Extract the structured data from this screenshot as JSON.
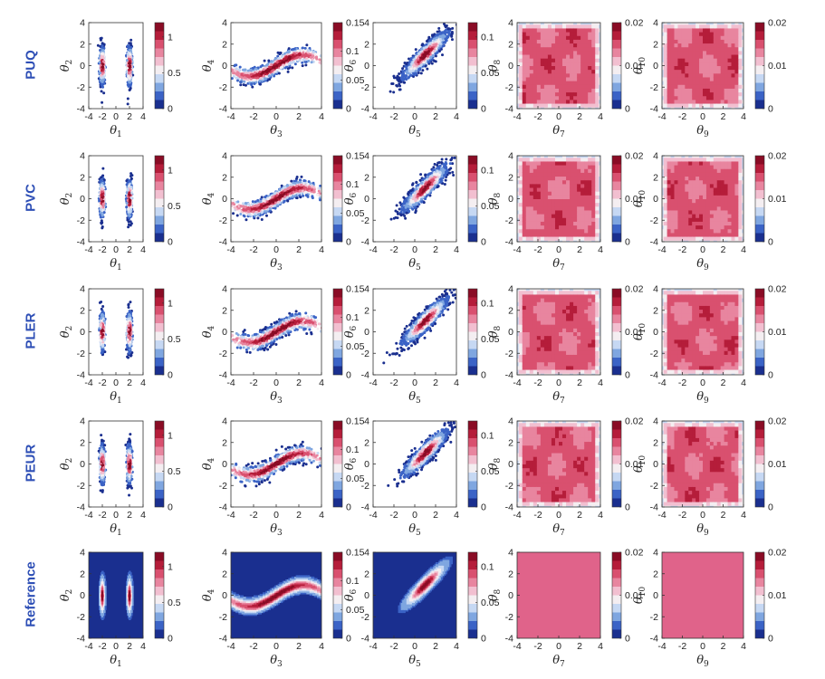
{
  "methods": [
    "PUQ",
    "PVC",
    "PLER",
    "PEUR",
    "Reference"
  ],
  "colors": {
    "row_label": "#2e4fb6",
    "colormap": [
      "#1a2f8f",
      "#3b63c6",
      "#7fa6e0",
      "#c6d8f3",
      "#f4eef1",
      "#f2bfd0",
      "#e8859f",
      "#d9506f",
      "#b51d3a",
      "#8a0c25"
    ],
    "reference_background": "#1a2f8f",
    "uniform_fill": "#e0638a"
  },
  "chart_data": [
    {
      "type": "heatmap",
      "panel": "theta1-theta2",
      "xlabel": "θ",
      "xlabel_sub": "1",
      "ylabel": "θ",
      "ylabel_sub": "2",
      "xlim": [
        -4,
        4
      ],
      "ylim": [
        -4,
        4
      ],
      "xticks": [
        -4,
        -2,
        0,
        2,
        4
      ],
      "yticks": [
        -4,
        -2,
        0,
        2,
        4
      ],
      "x_tick_labels": [
        "-4",
        "-2",
        "0",
        "2",
        "4"
      ],
      "y_tick_labels": [
        "-4",
        "-2",
        "0",
        "2",
        "4"
      ],
      "distribution": "bimodal",
      "modes_x": [
        -2,
        2
      ],
      "mode_y": 0,
      "colorbar": {
        "min": 0,
        "max": 1.2,
        "ticks": [
          0,
          0.5,
          1
        ],
        "tick_labels": [
          "0",
          "0.5",
          "1"
        ]
      }
    },
    {
      "type": "heatmap",
      "panel": "theta3-theta4",
      "xlabel": "θ",
      "xlabel_sub": "3",
      "ylabel": "θ",
      "ylabel_sub": "4",
      "xlim": [
        -4,
        4
      ],
      "ylim": [
        -4,
        4
      ],
      "xticks": [
        -4,
        -2,
        0,
        2,
        4
      ],
      "yticks": [
        -4,
        -2,
        0,
        2,
        4
      ],
      "x_tick_labels": [
        "-4",
        "-2",
        "0",
        "2",
        "4"
      ],
      "y_tick_labels": [
        "-4",
        "-2",
        "0",
        "2",
        "4"
      ],
      "distribution": "banana",
      "curve": "y = sin(x / 1.5)",
      "colorbar": {
        "min": 0,
        "max": 0.15,
        "ticks": [
          0,
          0.05,
          0.1,
          0.15
        ],
        "tick_labels": [
          "0",
          "0.05",
          "0.1",
          "0.15"
        ]
      }
    },
    {
      "type": "heatmap",
      "panel": "theta5-theta6",
      "xlabel": "θ",
      "xlabel_sub": "5",
      "ylabel": "θ",
      "ylabel_sub": "6",
      "xlim": [
        -4,
        4
      ],
      "ylim": [
        -4,
        4
      ],
      "xticks": [
        -4,
        -2,
        0,
        2,
        4
      ],
      "yticks": [
        -4,
        -2,
        0,
        2,
        4
      ],
      "x_tick_labels": [
        "-4",
        "-2",
        "0",
        "2",
        "4"
      ],
      "y_tick_labels": [
        "-4",
        "-2",
        "0",
        "2",
        "4"
      ],
      "distribution": "correlated-gaussian",
      "mean": [
        1,
        1
      ],
      "correlation": 0.9,
      "colorbar": {
        "min": 0,
        "max": 0.12,
        "ticks": [
          0,
          0.05,
          0.1
        ],
        "tick_labels": [
          "0",
          "0.05",
          "0.1"
        ]
      }
    },
    {
      "type": "heatmap",
      "panel": "theta7-theta8",
      "xlabel": "θ",
      "xlabel_sub": "7",
      "ylabel": "θ",
      "ylabel_sub": "8",
      "xlim": [
        -4,
        4
      ],
      "ylim": [
        -4,
        4
      ],
      "xticks": [
        -4,
        -2,
        0,
        2,
        4
      ],
      "yticks": [
        -4,
        -2,
        0,
        2,
        4
      ],
      "x_tick_labels": [
        "-4",
        "-2",
        "0",
        "2",
        "4"
      ],
      "y_tick_labels": [
        "-4",
        "-2",
        "0",
        "2",
        "4"
      ],
      "distribution": "uniform",
      "support": [
        -4,
        4
      ],
      "colorbar": {
        "min": 0,
        "max": 0.02,
        "ticks": [
          0,
          0.01,
          0.02
        ],
        "tick_labels": [
          "0",
          "0.01",
          "0.02"
        ]
      }
    },
    {
      "type": "heatmap",
      "panel": "theta9-theta10",
      "xlabel": "θ",
      "xlabel_sub": "9",
      "ylabel": "θ",
      "ylabel_sub": "10",
      "xlim": [
        -4,
        4
      ],
      "ylim": [
        -4,
        4
      ],
      "xticks": [
        -4,
        -2,
        0,
        2,
        4
      ],
      "yticks": [
        -4,
        -2,
        0,
        2,
        4
      ],
      "x_tick_labels": [
        "-4",
        "-2",
        "0",
        "2",
        "4"
      ],
      "y_tick_labels": [
        "-4",
        "-2",
        "0",
        "2",
        "4"
      ],
      "distribution": "uniform",
      "support": [
        -4,
        4
      ],
      "colorbar": {
        "min": 0,
        "max": 0.02,
        "ticks": [
          0,
          0.01,
          0.02
        ],
        "tick_labels": [
          "0",
          "0.01",
          "0.02"
        ]
      }
    }
  ]
}
